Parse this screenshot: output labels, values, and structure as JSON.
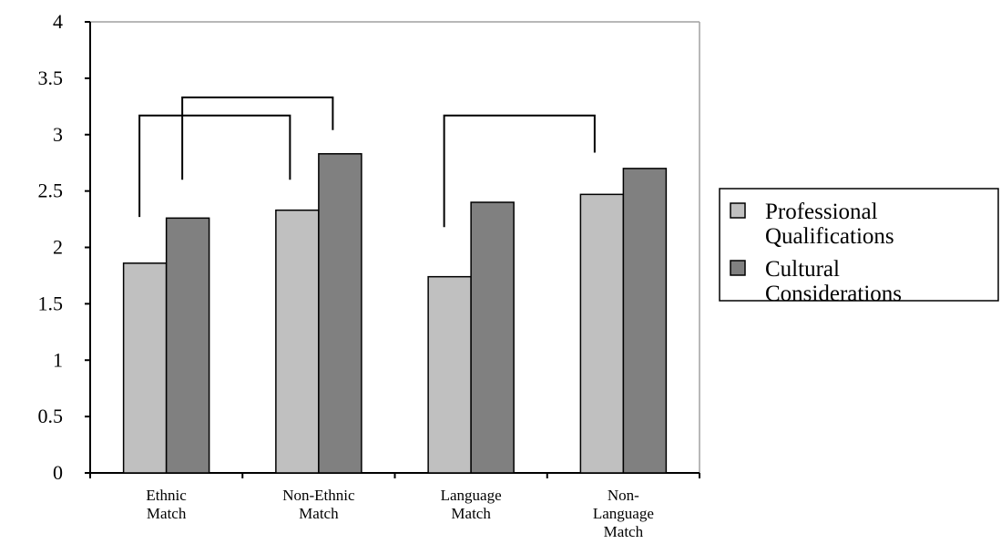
{
  "chart_data": {
    "type": "bar",
    "categories": [
      [
        "Ethnic",
        "Match"
      ],
      [
        "Non-Ethnic",
        "Match"
      ],
      [
        "Language",
        "Match"
      ],
      [
        "Non-",
        "Language",
        "Match"
      ]
    ],
    "series": [
      {
        "name": [
          "Professional",
          "Qualifications"
        ],
        "values": [
          1.86,
          2.33,
          1.74,
          2.47
        ],
        "color": "#c0c0c0"
      },
      {
        "name": [
          "Cultural",
          "Considerations"
        ],
        "values": [
          2.26,
          2.83,
          2.4,
          2.7
        ],
        "color": "#808080"
      }
    ],
    "y_ticks": [
      "0",
      "0.5",
      "1",
      "1.5",
      "2",
      "2.5",
      "3",
      "3.5",
      "4"
    ],
    "ylim": [
      0,
      4
    ],
    "title": "",
    "xlabel": "",
    "ylabel": "",
    "legend_position": "right",
    "grid": false,
    "significance_brackets": [
      {
        "from_category": 0,
        "to_category": 1,
        "left_series": 0,
        "right_series": 0,
        "top_value": 3.17,
        "left_bottom": 2.27,
        "right_bottom": 2.6
      },
      {
        "from_category": 0,
        "to_category": 1,
        "left_series": 1,
        "right_series": 1,
        "top_value": 3.33,
        "left_bottom": 2.6,
        "right_bottom": 3.04
      },
      {
        "from_category": 2,
        "to_category": 3,
        "left_series": 0,
        "right_series": 0,
        "top_value": 3.17,
        "left_bottom": 2.18,
        "right_bottom": 2.84
      }
    ]
  }
}
